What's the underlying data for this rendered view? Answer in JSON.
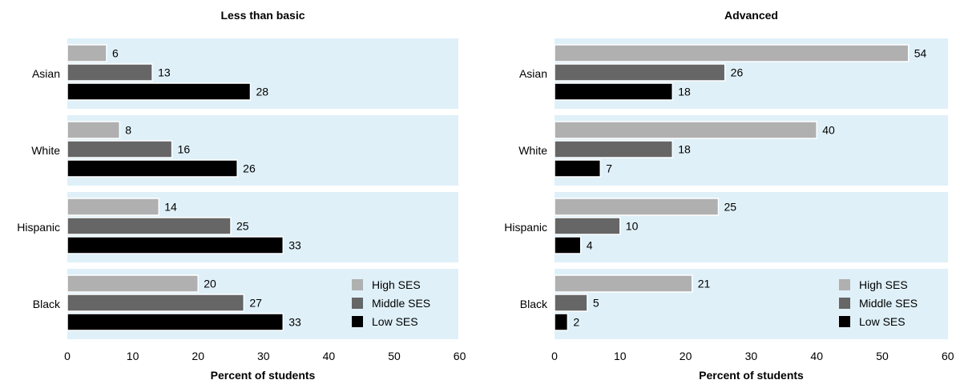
{
  "chart_data": [
    {
      "type": "bar",
      "orientation": "horizontal",
      "title": "Less than basic",
      "xlabel": "Percent of students",
      "ylabel": "",
      "xlim": [
        0,
        60
      ],
      "xticks": [
        "0",
        "10",
        "20",
        "30",
        "40",
        "50",
        "60"
      ],
      "categories": [
        "Asian",
        "White",
        "Hispanic",
        "Black"
      ],
      "series": [
        {
          "name": "High SES",
          "color": "#b0b0b0",
          "values": [
            6,
            8,
            14,
            20
          ]
        },
        {
          "name": "Middle SES",
          "color": "#666666",
          "values": [
            13,
            16,
            25,
            27
          ]
        },
        {
          "name": "Low SES",
          "color": "#000000",
          "values": [
            28,
            26,
            33,
            33
          ]
        }
      ],
      "legend": "bottom-right",
      "panel_background": "#dff0f8",
      "grid": false
    },
    {
      "type": "bar",
      "orientation": "horizontal",
      "title": "Advanced",
      "xlabel": "Percent of students",
      "ylabel": "",
      "xlim": [
        0,
        60
      ],
      "xticks": [
        "0",
        "10",
        "20",
        "30",
        "40",
        "50",
        "60"
      ],
      "categories": [
        "Asian",
        "White",
        "Hispanic",
        "Black"
      ],
      "series": [
        {
          "name": "High SES",
          "color": "#b0b0b0",
          "values": [
            54,
            40,
            25,
            21
          ]
        },
        {
          "name": "Middle SES",
          "color": "#666666",
          "values": [
            26,
            18,
            10,
            5
          ]
        },
        {
          "name": "Low SES",
          "color": "#000000",
          "values": [
            18,
            7,
            4,
            2
          ]
        }
      ],
      "legend": "bottom-right",
      "panel_background": "#dff0f8",
      "grid": false
    }
  ]
}
